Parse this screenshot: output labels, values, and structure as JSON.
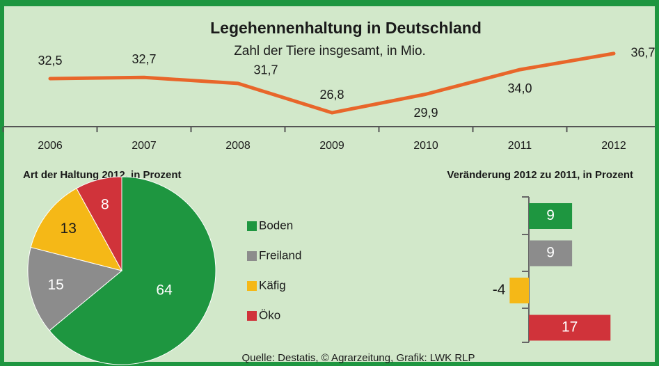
{
  "chart_data": [
    {
      "type": "line",
      "title": "Legehennenhaltung in Deutschland",
      "subtitle": "Zahl der Tiere insgesamt, in Mio.",
      "categories": [
        "2006",
        "2007",
        "2008",
        "2009",
        "2010",
        "2011",
        "2012"
      ],
      "values": [
        32.5,
        32.7,
        31.7,
        26.8,
        29.9,
        34.0,
        36.7
      ],
      "value_labels": [
        "32,5",
        "32,7",
        "31,7",
        "26,8",
        "29,9",
        "34,0",
        "36,7"
      ],
      "color": "#e8662a",
      "ylim": [
        20,
        40
      ]
    },
    {
      "type": "pie",
      "title": "Art der Haltung 2012,  in Prozent",
      "categories": [
        "Boden",
        "Freiland",
        "Käfig",
        "Öko"
      ],
      "values": [
        64,
        15,
        13,
        8
      ],
      "colors": [
        "#1e9640",
        "#8c8c8c",
        "#f5b817",
        "#d0333a"
      ]
    },
    {
      "type": "bar",
      "orientation": "horizontal",
      "title": "Veränderung 2012  zu 2011,  in Prozent",
      "values": [
        9,
        9,
        -4,
        17
      ],
      "colors": [
        "#1e9640",
        "#8c8c8c",
        "#f5b817",
        "#d0333a"
      ],
      "xlim": [
        -5,
        20
      ]
    }
  ],
  "source": "Quelle: Destatis, © Agrarzeitung, Grafik: LWK RLP"
}
